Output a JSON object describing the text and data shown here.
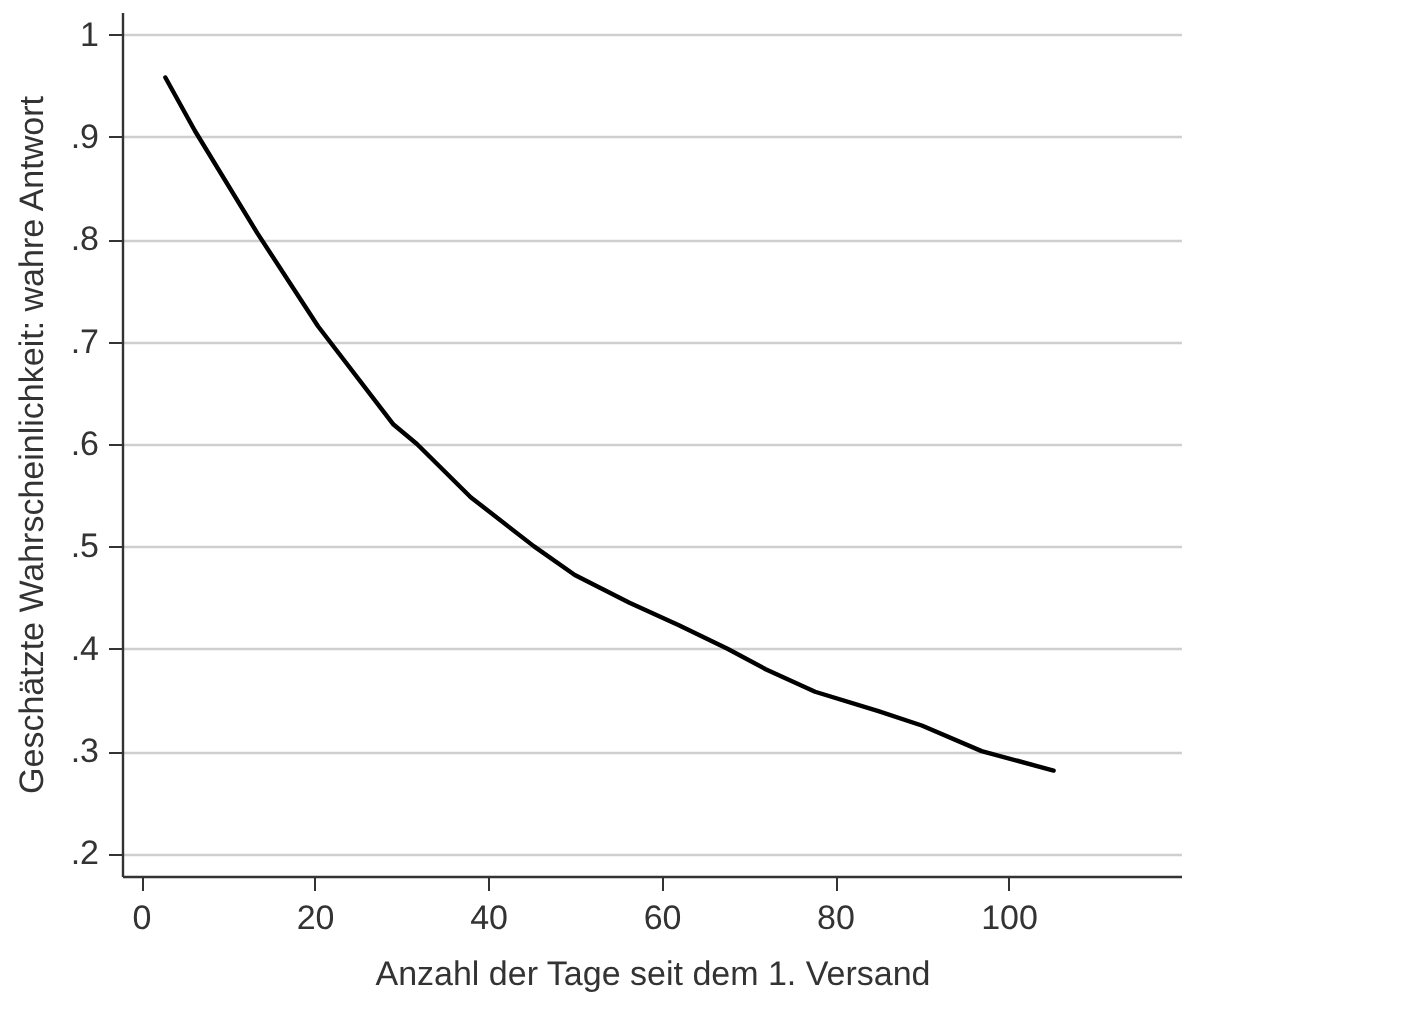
{
  "chart_data": {
    "type": "line",
    "xlabel": "Anzahl der Tage seit dem 1. Versand",
    "ylabel": "Geschätzte Wahrscheinlichkeit: wahre Antwort",
    "x": [
      2.8,
      6.2,
      13.4,
      20.4,
      29.1,
      31.8,
      38,
      45.3,
      50,
      56.3,
      62,
      67.6,
      72,
      77.7,
      85,
      90,
      96.9,
      105.2
    ],
    "series": [
      {
        "color": "#000000",
        "values": [
          0.958,
          0.906,
          0.806,
          0.715,
          0.619,
          0.6,
          0.548,
          0.5,
          0.472,
          0.445,
          0.423,
          0.4,
          0.38,
          0.358,
          0.339,
          0.325,
          0.3,
          0.281
        ]
      }
    ],
    "xlim": [
      -2.2,
      120
    ],
    "xticks": [
      0,
      20,
      40,
      60,
      80,
      100
    ],
    "ylim": [
      0.178,
      1.022
    ],
    "yticks": [
      {
        "value": 0.2,
        "label": ".2"
      },
      {
        "value": 0.3,
        "label": ".3"
      },
      {
        "value": 0.4,
        "label": ".4"
      },
      {
        "value": 0.5,
        "label": ".5"
      },
      {
        "value": 0.6,
        "label": ".6"
      },
      {
        "value": 0.7,
        "label": ".7"
      },
      {
        "value": 0.8,
        "label": ".8"
      },
      {
        "value": 0.9,
        "label": ".9"
      },
      {
        "value": 1,
        "label": "1"
      }
    ],
    "grid": "y",
    "marker": "none",
    "line_style": "solid"
  }
}
